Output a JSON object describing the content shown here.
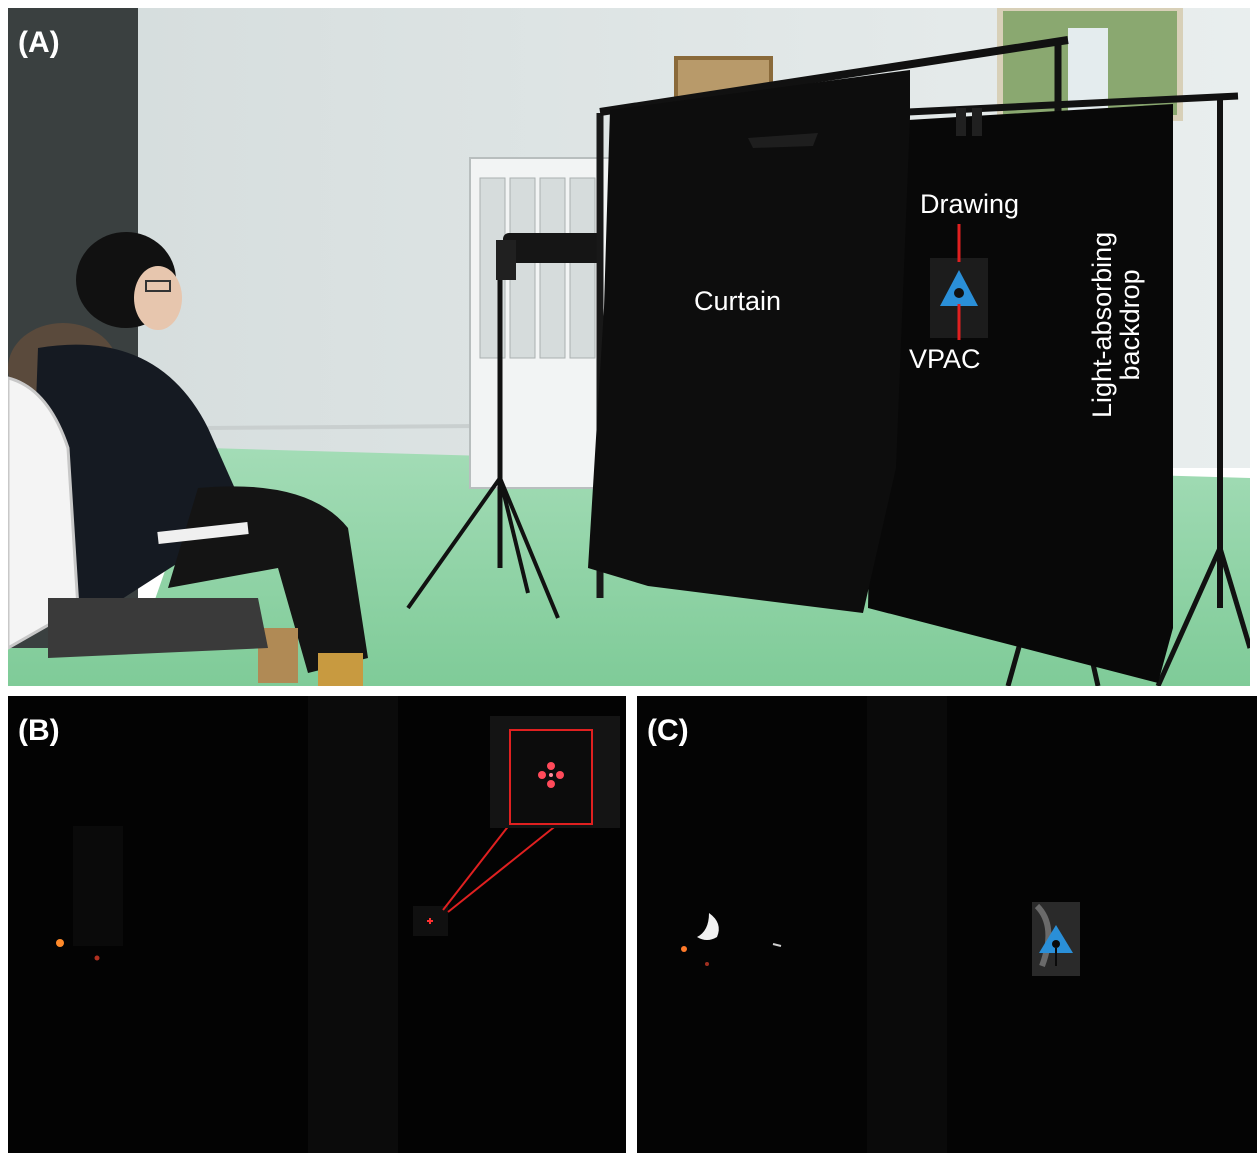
{
  "panels": {
    "a": {
      "label": "(A)"
    },
    "b": {
      "label": "(B)"
    },
    "c": {
      "label": "(C)"
    }
  },
  "annotations": {
    "curtain": "Curtain",
    "drawing": "Drawing",
    "vpac": "VPAC",
    "backdrop_line1": "Light-absorbing",
    "backdrop_line2": "backdrop"
  },
  "colors": {
    "wall": "#dfe6e6",
    "floor": "#8fd6a6",
    "curtain": "#0d0d0d",
    "marker_red": "#ff2a2a",
    "vpac_blue": "#2a8fd8",
    "callout_red": "#e02020"
  }
}
